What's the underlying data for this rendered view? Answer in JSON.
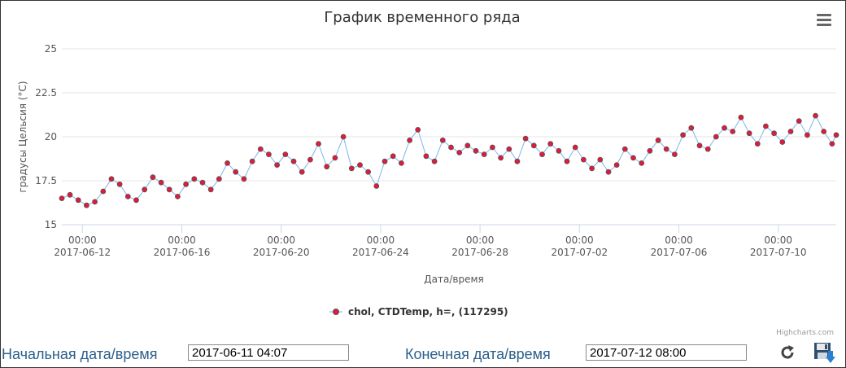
{
  "chart_data": {
    "type": "line",
    "title": "График временного ряда",
    "xlabel": "Дата/время",
    "ylabel": "градусы Цельсия (°C)",
    "ylim": [
      15,
      25
    ],
    "yticks": [
      15,
      17.5,
      20,
      22.5,
      25
    ],
    "ytick_labels": [
      "15",
      "17.5",
      "20",
      "22.5",
      "25"
    ],
    "xlim": [
      "2017-06-11 04:07",
      "2017-07-12 08:00"
    ],
    "xticks": [
      {
        "date": "2017-06-12",
        "time": "00:00"
      },
      {
        "date": "2017-06-16",
        "time": "00:00"
      },
      {
        "date": "2017-06-20",
        "time": "00:00"
      },
      {
        "date": "2017-06-24",
        "time": "00:00"
      },
      {
        "date": "2017-06-28",
        "time": "00:00"
      },
      {
        "date": "2017-07-02",
        "time": "00:00"
      },
      {
        "date": "2017-07-06",
        "time": "00:00"
      },
      {
        "date": "2017-07-10",
        "time": "00:00"
      }
    ],
    "grid": true,
    "legend_position": "bottom-center",
    "series": [
      {
        "name": "chol, CTDTemp, h=, (117295)",
        "line_color": "#7cb5ec",
        "marker_color": "#e3193b",
        "points": [
          [
            "2017-06-11 04:07",
            16.5
          ],
          [
            "2017-06-11 12:00",
            16.7
          ],
          [
            "2017-06-11 20:00",
            16.4
          ],
          [
            "2017-06-12 04:00",
            16.1
          ],
          [
            "2017-06-12 12:00",
            16.3
          ],
          [
            "2017-06-12 20:00",
            16.9
          ],
          [
            "2017-06-13 04:00",
            17.6
          ],
          [
            "2017-06-13 12:00",
            17.3
          ],
          [
            "2017-06-13 20:00",
            16.6
          ],
          [
            "2017-06-14 04:00",
            16.4
          ],
          [
            "2017-06-14 12:00",
            17.0
          ],
          [
            "2017-06-14 20:00",
            17.7
          ],
          [
            "2017-06-15 04:00",
            17.4
          ],
          [
            "2017-06-15 12:00",
            17.0
          ],
          [
            "2017-06-15 20:00",
            16.6
          ],
          [
            "2017-06-16 04:00",
            17.3
          ],
          [
            "2017-06-16 12:00",
            17.6
          ],
          [
            "2017-06-16 20:00",
            17.4
          ],
          [
            "2017-06-17 04:00",
            17.0
          ],
          [
            "2017-06-17 12:00",
            17.6
          ],
          [
            "2017-06-17 20:00",
            18.5
          ],
          [
            "2017-06-18 04:00",
            18.0
          ],
          [
            "2017-06-18 12:00",
            17.6
          ],
          [
            "2017-06-18 20:00",
            18.6
          ],
          [
            "2017-06-19 04:00",
            19.3
          ],
          [
            "2017-06-19 12:00",
            19.0
          ],
          [
            "2017-06-19 20:00",
            18.4
          ],
          [
            "2017-06-20 04:00",
            19.0
          ],
          [
            "2017-06-20 12:00",
            18.6
          ],
          [
            "2017-06-20 20:00",
            18.0
          ],
          [
            "2017-06-21 04:00",
            18.7
          ],
          [
            "2017-06-21 12:00",
            19.6
          ],
          [
            "2017-06-21 20:00",
            18.3
          ],
          [
            "2017-06-22 04:00",
            18.8
          ],
          [
            "2017-06-22 12:00",
            20.0
          ],
          [
            "2017-06-22 20:00",
            18.2
          ],
          [
            "2017-06-23 04:00",
            18.4
          ],
          [
            "2017-06-23 12:00",
            18.0
          ],
          [
            "2017-06-23 20:00",
            17.2
          ],
          [
            "2017-06-24 04:00",
            18.6
          ],
          [
            "2017-06-24 12:00",
            18.9
          ],
          [
            "2017-06-24 20:00",
            18.5
          ],
          [
            "2017-06-25 04:00",
            19.8
          ],
          [
            "2017-06-25 12:00",
            20.4
          ],
          [
            "2017-06-25 20:00",
            18.9
          ],
          [
            "2017-06-26 04:00",
            18.6
          ],
          [
            "2017-06-26 12:00",
            19.8
          ],
          [
            "2017-06-26 20:00",
            19.4
          ],
          [
            "2017-06-27 04:00",
            19.1
          ],
          [
            "2017-06-27 12:00",
            19.5
          ],
          [
            "2017-06-27 20:00",
            19.2
          ],
          [
            "2017-06-28 04:00",
            19.0
          ],
          [
            "2017-06-28 12:00",
            19.4
          ],
          [
            "2017-06-28 20:00",
            18.8
          ],
          [
            "2017-06-29 04:00",
            19.3
          ],
          [
            "2017-06-29 12:00",
            18.6
          ],
          [
            "2017-06-29 20:00",
            19.9
          ],
          [
            "2017-06-30 04:00",
            19.5
          ],
          [
            "2017-06-30 12:00",
            19.0
          ],
          [
            "2017-06-30 20:00",
            19.6
          ],
          [
            "2017-07-01 04:00",
            19.2
          ],
          [
            "2017-07-01 12:00",
            18.6
          ],
          [
            "2017-07-01 20:00",
            19.4
          ],
          [
            "2017-07-02 04:00",
            18.7
          ],
          [
            "2017-07-02 12:00",
            18.2
          ],
          [
            "2017-07-02 20:00",
            18.7
          ],
          [
            "2017-07-03 04:00",
            18.0
          ],
          [
            "2017-07-03 12:00",
            18.4
          ],
          [
            "2017-07-03 20:00",
            19.3
          ],
          [
            "2017-07-04 04:00",
            18.8
          ],
          [
            "2017-07-04 12:00",
            18.5
          ],
          [
            "2017-07-04 20:00",
            19.2
          ],
          [
            "2017-07-05 04:00",
            19.8
          ],
          [
            "2017-07-05 12:00",
            19.3
          ],
          [
            "2017-07-05 20:00",
            19.0
          ],
          [
            "2017-07-06 04:00",
            20.1
          ],
          [
            "2017-07-06 12:00",
            20.5
          ],
          [
            "2017-07-06 20:00",
            19.5
          ],
          [
            "2017-07-07 04:00",
            19.3
          ],
          [
            "2017-07-07 12:00",
            20.0
          ],
          [
            "2017-07-07 20:00",
            20.5
          ],
          [
            "2017-07-08 04:00",
            20.3
          ],
          [
            "2017-07-08 12:00",
            21.1
          ],
          [
            "2017-07-08 20:00",
            20.2
          ],
          [
            "2017-07-09 04:00",
            19.6
          ],
          [
            "2017-07-09 12:00",
            20.6
          ],
          [
            "2017-07-09 20:00",
            20.2
          ],
          [
            "2017-07-10 04:00",
            19.7
          ],
          [
            "2017-07-10 12:00",
            20.3
          ],
          [
            "2017-07-10 20:00",
            20.9
          ],
          [
            "2017-07-11 04:00",
            20.1
          ],
          [
            "2017-07-11 12:00",
            21.2
          ],
          [
            "2017-07-11 20:00",
            20.3
          ],
          [
            "2017-07-12 04:00",
            19.6
          ],
          [
            "2017-07-12 08:00",
            20.1
          ]
        ]
      }
    ]
  },
  "menu": {
    "icon": "hamburger-menu-icon"
  },
  "credits": "Highcharts.com",
  "controls": {
    "start_label": "Начальная дата/время",
    "start_value": "2017-06-11 04:07",
    "end_label": "Конечная дата/время",
    "end_value": "2017-07-12 08:00",
    "refresh_icon": "refresh-icon",
    "save_icon": "save-download-icon"
  }
}
